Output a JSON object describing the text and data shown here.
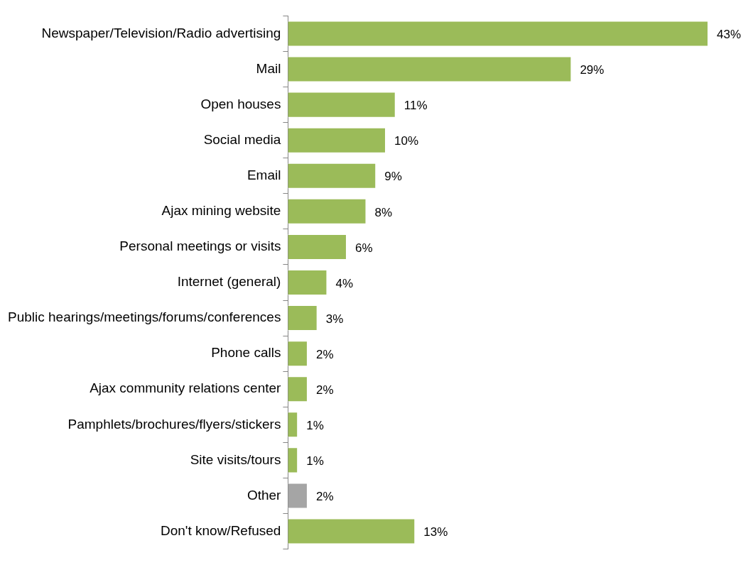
{
  "chart_data": {
    "type": "bar",
    "orientation": "horizontal",
    "categories": [
      "Newspaper/Television/Radio advertising",
      "Mail",
      "Open houses",
      "Social media",
      "Email",
      "Ajax mining website",
      "Personal meetings or visits",
      "Internet (general)",
      "Public hearings/meetings/forums/conferences",
      "Phone calls",
      "Ajax community relations center",
      "Pamphlets/brochures/flyers/stickers",
      "Site visits/tours",
      "Other",
      "Don't know/Refused"
    ],
    "values": [
      43,
      29,
      11,
      10,
      9,
      8,
      6,
      4,
      3,
      2,
      2,
      1,
      1,
      2,
      13
    ],
    "colors": [
      "#9bbb59",
      "#9bbb59",
      "#9bbb59",
      "#9bbb59",
      "#9bbb59",
      "#9bbb59",
      "#9bbb59",
      "#9bbb59",
      "#9bbb59",
      "#9bbb59",
      "#9bbb59",
      "#9bbb59",
      "#9bbb59",
      "#a5a5a5",
      "#9bbb59"
    ],
    "value_labels": [
      "43%",
      "29%",
      "11%",
      "10%",
      "9%",
      "8%",
      "6%",
      "4%",
      "3%",
      "2%",
      "2%",
      "1%",
      "1%",
      "2%",
      "13%"
    ],
    "xlim": [
      0,
      43
    ]
  }
}
